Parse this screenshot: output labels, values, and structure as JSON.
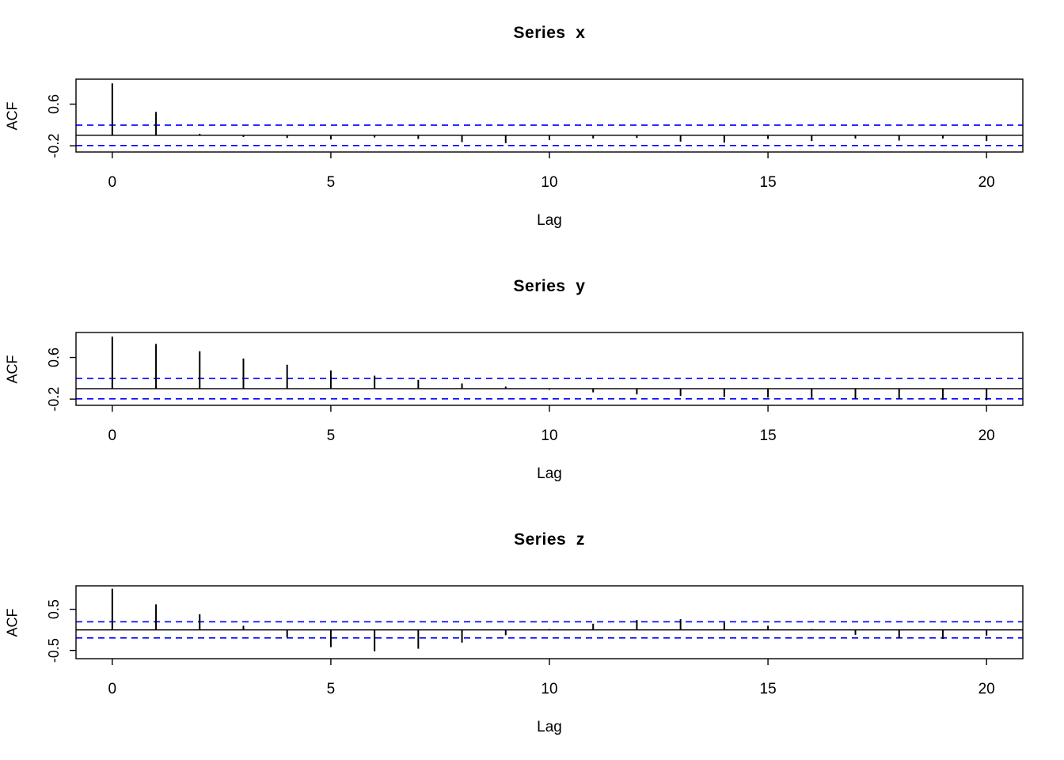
{
  "figure": {
    "background": "#ffffff",
    "axis_color": "#000000",
    "bar_color": "#000000",
    "ci_color": "#0000ff"
  },
  "chart_data": [
    {
      "type": "bar",
      "chart_kind": "autocorrelation",
      "title": "Series  x",
      "xlabel": "Lag",
      "ylabel": "ACF",
      "x": [
        0,
        1,
        2,
        3,
        4,
        5,
        6,
        7,
        8,
        9,
        10,
        11,
        12,
        13,
        14,
        15,
        16,
        17,
        18,
        19,
        20
      ],
      "values": [
        1.0,
        0.45,
        0.03,
        -0.03,
        -0.05,
        -0.08,
        -0.04,
        -0.07,
        -0.13,
        -0.15,
        -0.09,
        -0.06,
        -0.05,
        -0.12,
        -0.14,
        -0.07,
        -0.11,
        -0.06,
        -0.1,
        -0.06,
        -0.11
      ],
      "conf_level": 0.196,
      "xlim": [
        -0.83,
        20.83
      ],
      "ylim": [
        -0.32,
        1.08
      ],
      "xticks": [
        0,
        5,
        10,
        15,
        20
      ],
      "yticks": [
        -0.2,
        0.6
      ],
      "grid": false,
      "legend": "none"
    },
    {
      "type": "bar",
      "chart_kind": "autocorrelation",
      "title": "Series  y",
      "xlabel": "Lag",
      "ylabel": "ACF",
      "x": [
        0,
        1,
        2,
        3,
        4,
        5,
        6,
        7,
        8,
        9,
        10,
        11,
        12,
        13,
        14,
        15,
        16,
        17,
        18,
        19,
        20
      ],
      "values": [
        1.0,
        0.86,
        0.72,
        0.58,
        0.46,
        0.35,
        0.25,
        0.17,
        0.1,
        0.04,
        -0.02,
        -0.07,
        -0.11,
        -0.14,
        -0.16,
        -0.17,
        -0.18,
        -0.19,
        -0.2,
        -0.21,
        -0.22
      ],
      "conf_level": 0.196,
      "xlim": [
        -0.83,
        20.83
      ],
      "ylim": [
        -0.32,
        1.08
      ],
      "xticks": [
        0,
        5,
        10,
        15,
        20
      ],
      "yticks": [
        -0.2,
        0.6
      ],
      "grid": false,
      "legend": "none"
    },
    {
      "type": "bar",
      "chart_kind": "autocorrelation",
      "title": "Series  z",
      "xlabel": "Lag",
      "ylabel": "ACF",
      "x": [
        0,
        1,
        2,
        3,
        4,
        5,
        6,
        7,
        8,
        9,
        10,
        11,
        12,
        13,
        14,
        15,
        16,
        17,
        18,
        19,
        20
      ],
      "values": [
        1.0,
        0.62,
        0.38,
        0.1,
        -0.18,
        -0.42,
        -0.52,
        -0.46,
        -0.31,
        -0.13,
        0.02,
        0.15,
        0.24,
        0.26,
        0.18,
        0.1,
        0.02,
        -0.12,
        -0.2,
        -0.22,
        -0.14
      ],
      "conf_level": 0.196,
      "xlim": [
        -0.83,
        20.83
      ],
      "ylim": [
        -0.7,
        1.07
      ],
      "xticks": [
        0,
        5,
        10,
        15,
        20
      ],
      "yticks": [
        -0.5,
        0.5
      ],
      "grid": false,
      "legend": "none"
    }
  ]
}
